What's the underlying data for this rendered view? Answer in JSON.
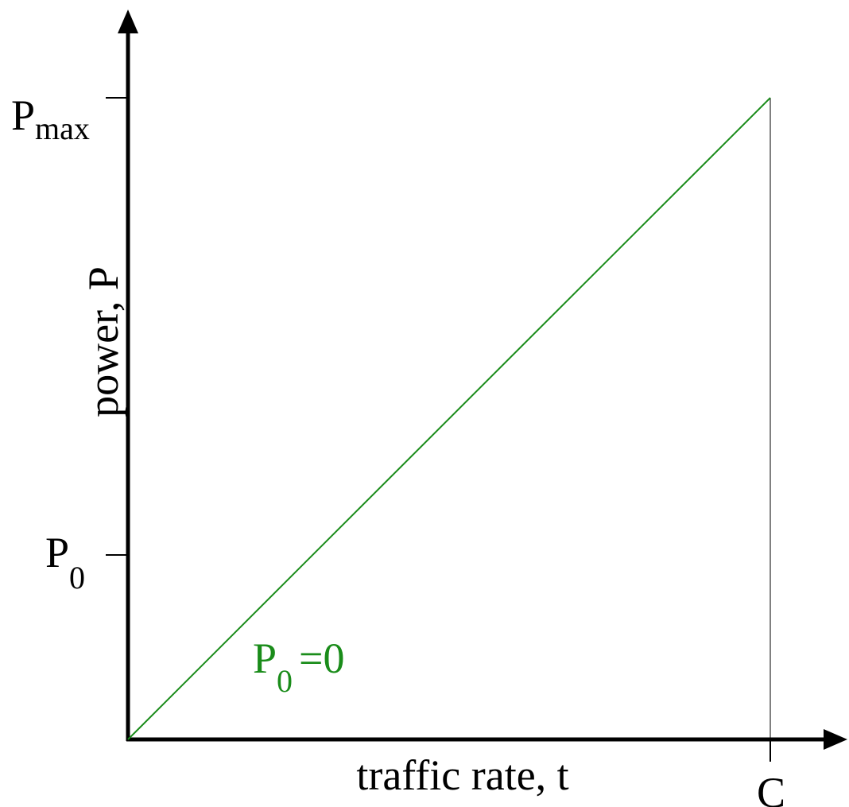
{
  "diagram": {
    "y_axis_label": "power, P",
    "x_axis_label": "traffic rate, t",
    "y_ticks": {
      "pmax": {
        "base": "P",
        "sub": "max"
      },
      "p0": {
        "base": "P",
        "sub": "0"
      }
    },
    "x_ticks": {
      "c": "C"
    },
    "line_annotation": {
      "base": "P",
      "sub": "0",
      "suffix": "=0"
    },
    "colors": {
      "axis": "#000000",
      "line": "#1a8c1a",
      "annotation": "#1a8c1a"
    }
  }
}
